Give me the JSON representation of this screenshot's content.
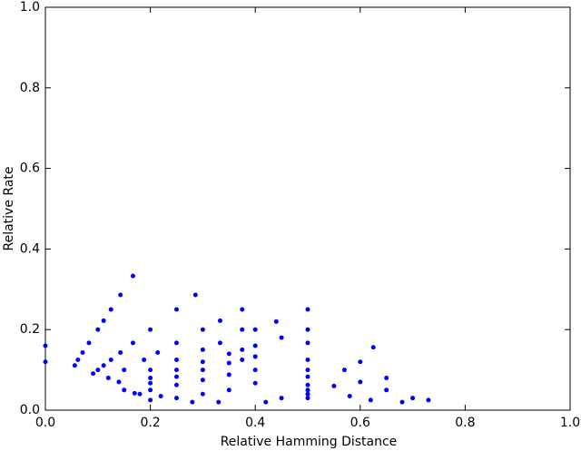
{
  "chart_data": {
    "type": "scatter",
    "xlabel": "Relative Hamming Distance",
    "ylabel": "Relative Rate",
    "xlim": [
      0,
      1
    ],
    "ylim": [
      0,
      1
    ],
    "xticks": [
      {
        "value": 0,
        "label": "0.0"
      },
      {
        "value": 0.2,
        "label": "0.2"
      },
      {
        "value": 0.4,
        "label": "0.4"
      },
      {
        "value": 0.6,
        "label": "0.6"
      },
      {
        "value": 0.8,
        "label": "0.8"
      },
      {
        "value": 1,
        "label": "1.0"
      }
    ],
    "yticks": [
      {
        "value": 0,
        "label": "0.0"
      },
      {
        "value": 0.2,
        "label": "0.2"
      },
      {
        "value": 0.4,
        "label": "0.4"
      },
      {
        "value": 0.6,
        "label": "0.6"
      },
      {
        "value": 0.8,
        "label": "0.8"
      },
      {
        "value": 1,
        "label": "1.0"
      }
    ],
    "color": "#0000ff",
    "x": [
      0.0,
      0.0,
      0.056,
      0.062,
      0.071,
      0.083,
      0.1,
      0.111,
      0.125,
      0.143,
      0.167,
      0.091,
      0.1,
      0.111,
      0.125,
      0.143,
      0.167,
      0.2,
      0.25,
      0.286,
      0.12,
      0.15,
      0.188,
      0.214,
      0.25,
      0.3,
      0.333,
      0.375,
      0.14,
      0.2,
      0.25,
      0.3,
      0.333,
      0.4,
      0.44,
      0.5,
      0.5,
      0.5,
      0.5,
      0.5,
      0.5,
      0.5,
      0.5,
      0.5,
      0.5,
      0.2,
      0.25,
      0.3,
      0.35,
      0.4,
      0.45,
      0.625,
      0.6,
      0.57,
      0.65,
      0.6,
      0.55,
      0.65,
      0.7,
      0.73,
      0.68,
      0.62,
      0.58,
      0.15,
      0.2,
      0.25,
      0.3,
      0.35,
      0.375,
      0.4,
      0.17,
      0.2,
      0.25,
      0.3,
      0.35,
      0.4,
      0.375,
      0.375,
      0.4,
      0.35,
      0.3,
      0.25,
      0.2,
      0.45,
      0.42,
      0.33,
      0.28,
      0.22,
      0.18
    ],
    "y": [
      0.16,
      0.12,
      0.111,
      0.125,
      0.143,
      0.167,
      0.2,
      0.222,
      0.25,
      0.286,
      0.333,
      0.091,
      0.1,
      0.111,
      0.125,
      0.143,
      0.167,
      0.2,
      0.25,
      0.286,
      0.08,
      0.1,
      0.125,
      0.143,
      0.167,
      0.2,
      0.222,
      0.25,
      0.07,
      0.1,
      0.125,
      0.15,
      0.167,
      0.2,
      0.22,
      0.25,
      0.2,
      0.167,
      0.125,
      0.1,
      0.083,
      0.0625,
      0.05,
      0.04,
      0.03,
      0.08,
      0.1,
      0.12,
      0.14,
      0.16,
      0.18,
      0.156,
      0.12,
      0.1,
      0.08,
      0.07,
      0.06,
      0.05,
      0.03,
      0.025,
      0.02,
      0.025,
      0.035,
      0.05,
      0.067,
      0.083,
      0.1,
      0.117,
      0.125,
      0.133,
      0.042,
      0.05,
      0.0625,
      0.075,
      0.088,
      0.1,
      0.2,
      0.15,
      0.067,
      0.05,
      0.04,
      0.03,
      0.025,
      0.03,
      0.02,
      0.02,
      0.02,
      0.035,
      0.04
    ]
  }
}
